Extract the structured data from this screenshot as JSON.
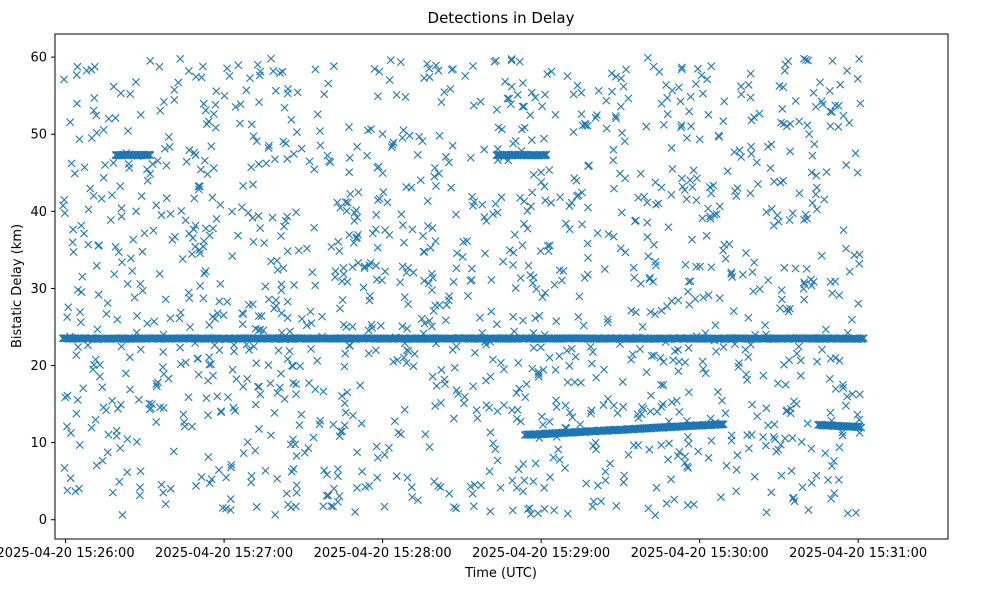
{
  "chart_data": {
    "type": "scatter",
    "title": "Detections in Delay",
    "xlabel": "Time (UTC)",
    "ylabel": "Bistatic Delay (km)",
    "marker": "x",
    "color": "#1f77b4",
    "x_unit": "seconds after 2025-04-20 15:26:00 UTC",
    "xlim": [
      -4,
      334
    ],
    "ylim": [
      -2.5,
      63
    ],
    "x_ticks": [
      {
        "value": 0,
        "label": "2025-04-20 15:26:00"
      },
      {
        "value": 60,
        "label": "2025-04-20 15:27:00"
      },
      {
        "value": 120,
        "label": "2025-04-20 15:28:00"
      },
      {
        "value": 180,
        "label": "2025-04-20 15:29:00"
      },
      {
        "value": 240,
        "label": "2025-04-20 15:30:00"
      },
      {
        "value": 300,
        "label": "2025-04-20 15:31:00"
      }
    ],
    "y_ticks": [
      {
        "value": 0,
        "label": "0"
      },
      {
        "value": 10,
        "label": "10"
      },
      {
        "value": 20,
        "label": "20"
      },
      {
        "value": 30,
        "label": "30"
      },
      {
        "value": 40,
        "label": "40"
      },
      {
        "value": 50,
        "label": "50"
      },
      {
        "value": 60,
        "label": "60"
      }
    ],
    "grid": false,
    "legend": "none",
    "tracks": [
      {
        "description": "dense constant-delay detections",
        "x_start": -1,
        "x_end": 302,
        "delay": 23.5
      },
      {
        "description": "constant-delay segment",
        "x_start": 19,
        "x_end": 32,
        "delay": 47.3
      },
      {
        "description": "constant-delay segment",
        "x_start": 163,
        "x_end": 182,
        "delay": 47.3
      },
      {
        "description": "drifting track",
        "x_start": 174,
        "x_end": 249,
        "delay_start": 11.0,
        "delay_end": 12.4
      },
      {
        "description": "short track",
        "x_start": 285,
        "x_end": 301,
        "delay_start": 12.3,
        "delay_end": 12.0
      }
    ],
    "clutter": {
      "description": "scattered random detections",
      "count": 1400,
      "x_range": [
        -1,
        302
      ],
      "delay_range": [
        0.5,
        60
      ]
    }
  }
}
